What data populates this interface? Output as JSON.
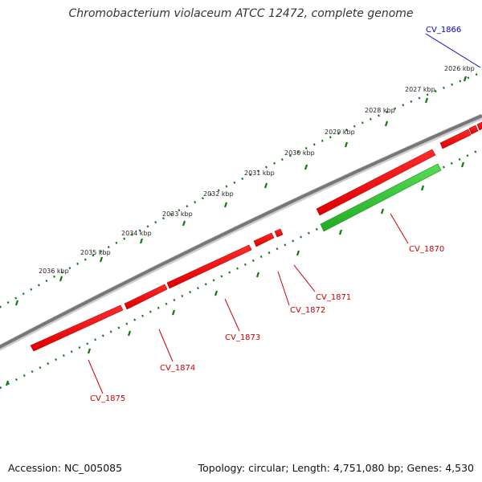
{
  "header": {
    "title": "Chromobacterium violaceum ATCC 12472, complete genome"
  },
  "footer": {
    "accession": "Accession: NC_005085",
    "summary": "Topology: circular; Length: 4,751,080 bp; Genes: 4,530"
  },
  "scale": {
    "ticks": [
      "2026 kbp",
      "2027 kbp",
      "2028 kbp",
      "2029 kbp",
      "2030 kbp",
      "2031 kbp",
      "2032 kbp",
      "2033 kbp",
      "2034 kbp",
      "2035 kbp",
      "2036 kbp"
    ]
  },
  "genes": [
    {
      "label": "CV_1866",
      "strand": "forward",
      "color": "#0000cc"
    },
    {
      "label": "CV_1870",
      "strand": "reverse",
      "color": "#cc0000"
    },
    {
      "label": "CV_1871",
      "strand": "forward",
      "color": "#cc0000"
    },
    {
      "label": "CV_1872",
      "strand": "forward",
      "color": "#cc0000"
    },
    {
      "label": "CV_1873",
      "strand": "forward",
      "color": "#cc0000"
    },
    {
      "label": "CV_1874",
      "strand": "forward",
      "color": "#cc0000"
    },
    {
      "label": "CV_1875",
      "strand": "forward",
      "color": "#cc0000"
    }
  ],
  "colors": {
    "forward_gene": "#ee1111",
    "reverse_gene": "#33cc33",
    "backbone": "#777777",
    "ticks": "#117711"
  }
}
